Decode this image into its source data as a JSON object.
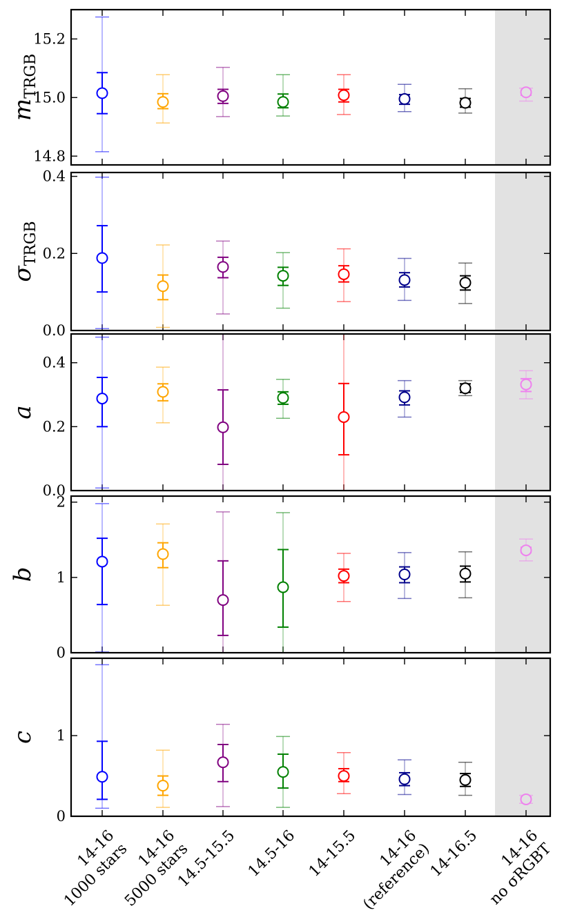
{
  "chart_data": {
    "type": "scatter",
    "x_categories": [
      [
        "14-16",
        "1000 stars"
      ],
      [
        "14-16",
        "5000 stars"
      ],
      [
        "14.5-15.5"
      ],
      [
        "14.5-16"
      ],
      [
        "14-15.5"
      ],
      [
        "14-16",
        "(reference)"
      ],
      [
        "14-16.5"
      ],
      [
        "14-16",
        "no σRGBT"
      ]
    ],
    "highlighted_category": 7,
    "series_colors": [
      "#0000ff",
      "#ffa500",
      "#800080",
      "#008000",
      "#ff0000",
      "#00008b",
      "#000000",
      "#ee82ee"
    ],
    "panels": [
      {
        "ylabel": "m",
        "ylabel_sub": "TRGB",
        "ylim": [
          14.77,
          15.3
        ],
        "yticks": [
          14.8,
          15.0,
          15.2
        ],
        "yticklabels": [
          "14.8",
          "15.0",
          "15.2"
        ],
        "values": [
          15.015,
          14.985,
          15.005,
          14.985,
          15.008,
          14.995,
          14.982,
          15.018
        ],
        "err1_lo": [
          14.945,
          14.962,
          14.98,
          14.965,
          14.985,
          14.977,
          14.967,
          15.008
        ],
        "err1_hi": [
          15.085,
          15.013,
          15.028,
          15.012,
          15.028,
          15.01,
          14.997,
          15.025
        ],
        "err2_lo": [
          14.815,
          14.913,
          14.935,
          14.937,
          14.942,
          14.952,
          14.947,
          14.988
        ],
        "err2_hi": [
          15.275,
          15.078,
          15.103,
          15.078,
          15.078,
          15.045,
          15.03,
          15.032
        ]
      },
      {
        "ylabel": "σ",
        "ylabel_sub": "TRGB",
        "ylim": [
          0.0,
          0.41
        ],
        "yticks": [
          0.0,
          0.2,
          0.4
        ],
        "yticklabels": [
          "0.0",
          "0.2",
          "0.4"
        ],
        "values": [
          0.188,
          0.115,
          0.165,
          0.142,
          0.146,
          0.131,
          0.124,
          null
        ],
        "err1_lo": [
          0.1,
          0.08,
          0.137,
          0.117,
          0.126,
          0.113,
          0.105,
          null
        ],
        "err1_hi": [
          0.272,
          0.144,
          0.19,
          0.164,
          0.168,
          0.15,
          0.142,
          null
        ],
        "err2_lo": [
          0.005,
          0.008,
          0.043,
          0.058,
          0.075,
          0.078,
          0.07,
          null
        ],
        "err2_hi": [
          0.398,
          0.222,
          0.232,
          0.202,
          0.212,
          0.187,
          0.175,
          null
        ]
      },
      {
        "ylabel": "a",
        "ylabel_sub": "",
        "ylim": [
          0.0,
          0.49
        ],
        "yticks": [
          0.0,
          0.2,
          0.4
        ],
        "yticklabels": [
          "0.0",
          "0.2",
          "0.4"
        ],
        "values": [
          0.288,
          0.309,
          0.198,
          0.29,
          0.23,
          0.292,
          0.32,
          0.332
        ],
        "err1_lo": [
          0.2,
          0.281,
          0.082,
          0.27,
          0.112,
          0.268,
          0.307,
          0.31
        ],
        "err1_hi": [
          0.354,
          0.334,
          0.315,
          0.309,
          0.335,
          0.312,
          0.334,
          0.35
        ],
        "err2_lo": [
          0.008,
          0.212,
          0.0,
          0.226,
          0.0,
          0.23,
          0.297,
          0.287
        ],
        "err2_hi": [
          0.48,
          0.386,
          0.49,
          0.348,
          0.49,
          0.344,
          0.344,
          0.375
        ]
      },
      {
        "ylabel": "b",
        "ylabel_sub": "",
        "ylim": [
          0,
          2.08
        ],
        "yticks": [
          0,
          1,
          2
        ],
        "yticklabels": [
          "0",
          "1",
          "2"
        ],
        "values": [
          1.21,
          1.31,
          0.7,
          0.87,
          1.02,
          1.04,
          1.05,
          1.36
        ],
        "err1_lo": [
          0.64,
          1.13,
          0.23,
          0.34,
          0.93,
          0.93,
          0.94,
          1.33
        ],
        "err1_hi": [
          1.52,
          1.46,
          1.22,
          1.37,
          1.11,
          1.14,
          1.15,
          1.4
        ],
        "err2_lo": [
          0.01,
          0.63,
          0.0,
          0.0,
          0.68,
          0.72,
          0.73,
          1.22
        ],
        "err2_hi": [
          1.98,
          1.71,
          1.87,
          1.86,
          1.32,
          1.33,
          1.34,
          1.51
        ]
      },
      {
        "ylabel": "c",
        "ylabel_sub": "",
        "ylim": [
          0,
          1.96
        ],
        "yticks": [
          0,
          1
        ],
        "yticklabels": [
          "0",
          "1"
        ],
        "values": [
          0.49,
          0.38,
          0.67,
          0.55,
          0.5,
          0.46,
          0.45,
          0.21
        ],
        "err1_lo": [
          0.21,
          0.26,
          0.43,
          0.35,
          0.43,
          0.38,
          0.37,
          0.19
        ],
        "err1_hi": [
          0.93,
          0.5,
          0.89,
          0.77,
          0.59,
          0.54,
          0.53,
          0.24
        ],
        "err2_lo": [
          0.1,
          0.11,
          0.12,
          0.11,
          0.28,
          0.27,
          0.26,
          0.16
        ],
        "err2_hi": [
          1.88,
          0.82,
          1.14,
          0.99,
          0.79,
          0.7,
          0.67,
          0.26
        ]
      }
    ]
  }
}
